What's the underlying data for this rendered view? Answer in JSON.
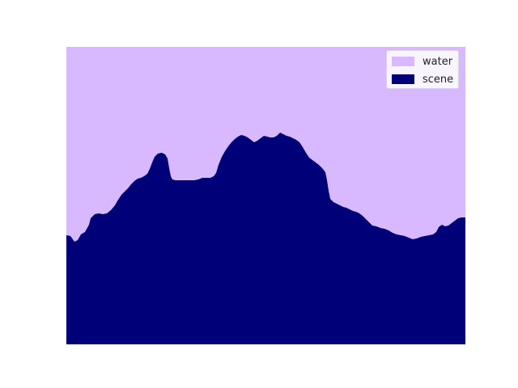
{
  "colors": {
    "background": "#ffffff",
    "water": "#d8b8ff",
    "scene": "#000078"
  },
  "legend": {
    "placement": "top-right",
    "items": [
      {
        "label": "water",
        "color": "#d8b8ff",
        "icon": "swatch"
      },
      {
        "label": "scene",
        "color": "#000078",
        "icon": "swatch"
      }
    ]
  }
}
